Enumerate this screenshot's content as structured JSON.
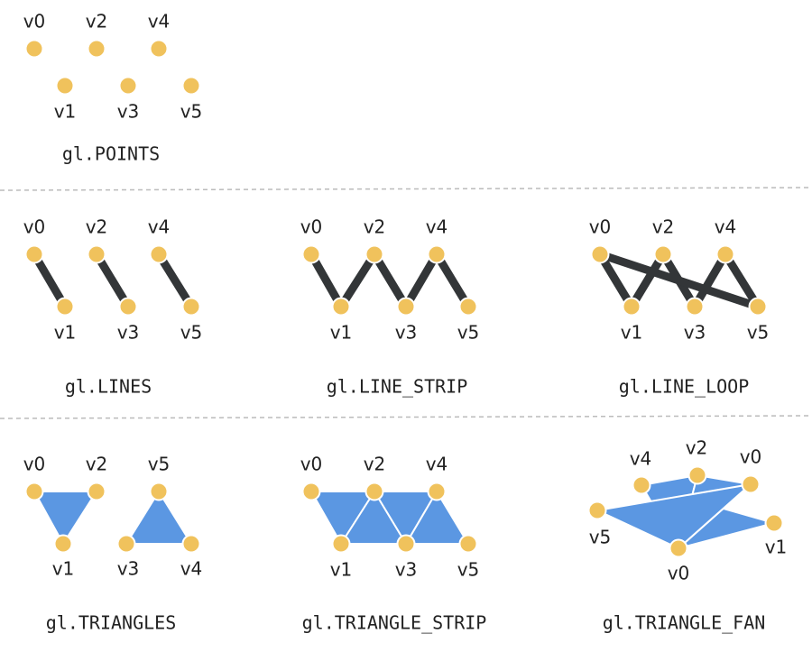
{
  "panels": [
    {
      "caption": "gl.POINTS",
      "vertices": [
        "v0",
        "v2",
        "v4",
        "v1",
        "v3",
        "v5"
      ]
    },
    {
      "caption": "gl.LINES",
      "vertices": [
        "v0",
        "v2",
        "v4",
        "v1",
        "v3",
        "v5"
      ]
    },
    {
      "caption": "gl.LINE_STRIP",
      "vertices": [
        "v0",
        "v2",
        "v4",
        "v1",
        "v3",
        "v5"
      ]
    },
    {
      "caption": "gl.LINE_LOOP",
      "vertices": [
        "v0",
        "v2",
        "v4",
        "v1",
        "v3",
        "v5"
      ]
    },
    {
      "caption": "gl.TRIANGLES",
      "vertices": [
        "v0",
        "v2",
        "v1",
        "v5",
        "v3",
        "v4"
      ]
    },
    {
      "caption": "gl.TRIANGLE_STRIP",
      "vertices": [
        "v0",
        "v2",
        "v4",
        "v1",
        "v3",
        "v5"
      ]
    },
    {
      "caption": "gl.TRIANGLE_FAN",
      "vertices": [
        "v4",
        "v2",
        "v0",
        "v5",
        "v1",
        "v0"
      ]
    }
  ]
}
